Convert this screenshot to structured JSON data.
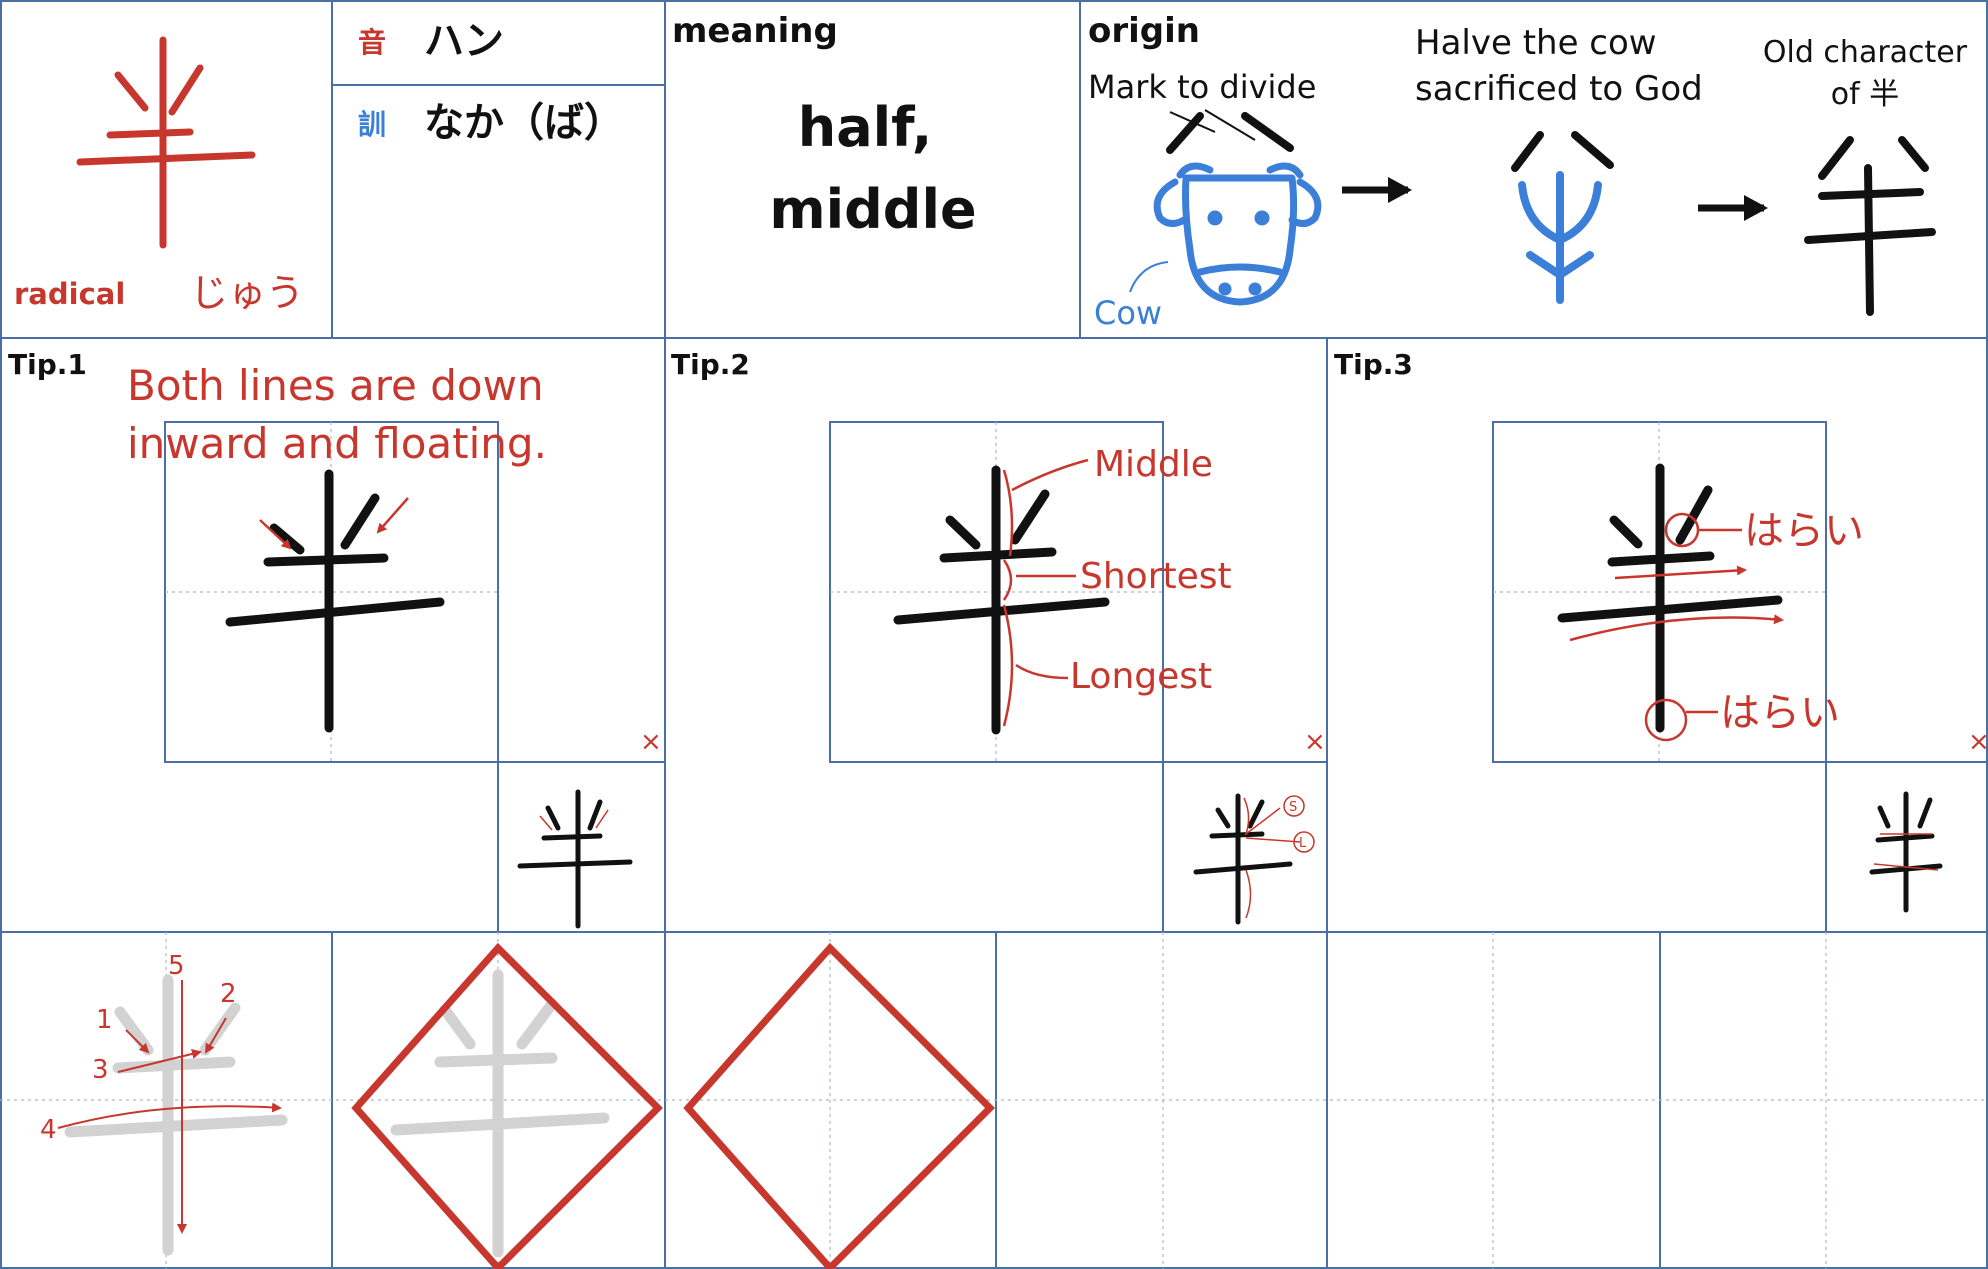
{
  "colors": {
    "grid": "#4a6fa5",
    "red": "#c8372d",
    "blue": "#3b7fd9",
    "black": "#111111",
    "ghost": "#cfcfcf"
  },
  "kanji": "半",
  "radical": {
    "label": "radical",
    "reading": "じゅう"
  },
  "readings": {
    "on": {
      "tag": "音",
      "value": "ハン"
    },
    "kun": {
      "tag": "訓",
      "value": "なか（ば）"
    }
  },
  "meaning": {
    "heading": "meaning",
    "line1": "half,",
    "line2": "middle"
  },
  "origin": {
    "heading": "origin",
    "mark_label": "Mark to divide",
    "cow_label": "Cow",
    "step2_line1": "Halve the cow",
    "step2_line2": "sacrificed to God",
    "step3_line1": "Old character",
    "step3_line2": "of 半",
    "icons": [
      "cow-icon",
      "arrow-right-icon",
      "old-character-icon"
    ]
  },
  "tips": [
    {
      "label": "Tip.1",
      "note_line1": "Both lines are down",
      "note_line2": "inward and floating.",
      "mark": "×"
    },
    {
      "label": "Tip.2",
      "annotations": [
        "Middle",
        "Shortest",
        "Longest"
      ],
      "small_marks": [
        "S",
        "L"
      ],
      "mark": "×"
    },
    {
      "label": "Tip.3",
      "annotations": [
        "はらい",
        "はらい"
      ],
      "mark": "×"
    }
  ],
  "stroke_order": [
    "1",
    "2",
    "3",
    "4",
    "5"
  ]
}
